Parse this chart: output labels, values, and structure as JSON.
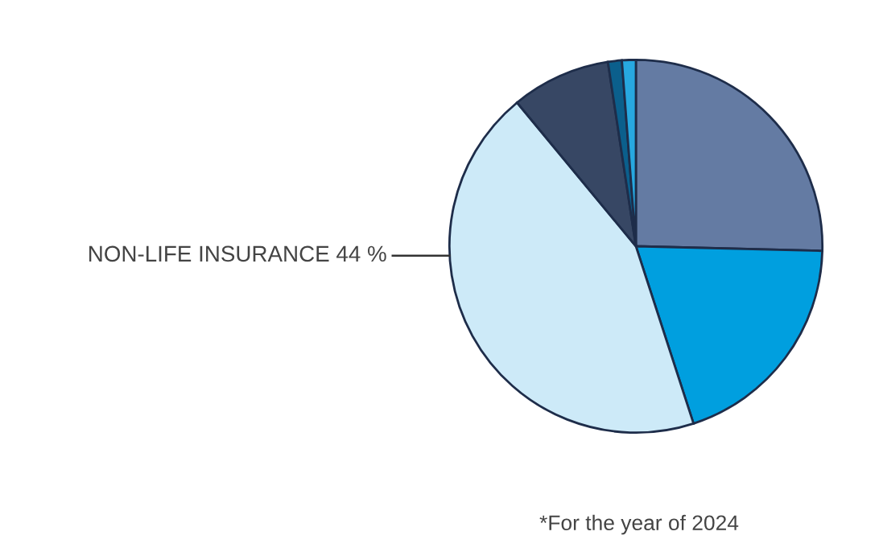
{
  "chart_data": {
    "type": "pie",
    "categories": [
      null,
      null,
      "NON-LIFE INSURANCE",
      null,
      null,
      null
    ],
    "values": [
      25.4,
      19.6,
      44,
      8.6,
      1.2,
      1.2
    ],
    "value_labels": [
      null,
      null,
      "44 %",
      null,
      null,
      null
    ],
    "colors": [
      "#647ba3",
      "#009fdf",
      "#cdeaf8",
      "#374764",
      "#0b5f8c",
      "#27a8e0"
    ],
    "annotations": [
      "*For the year of 2024"
    ],
    "legend": false
  }
}
